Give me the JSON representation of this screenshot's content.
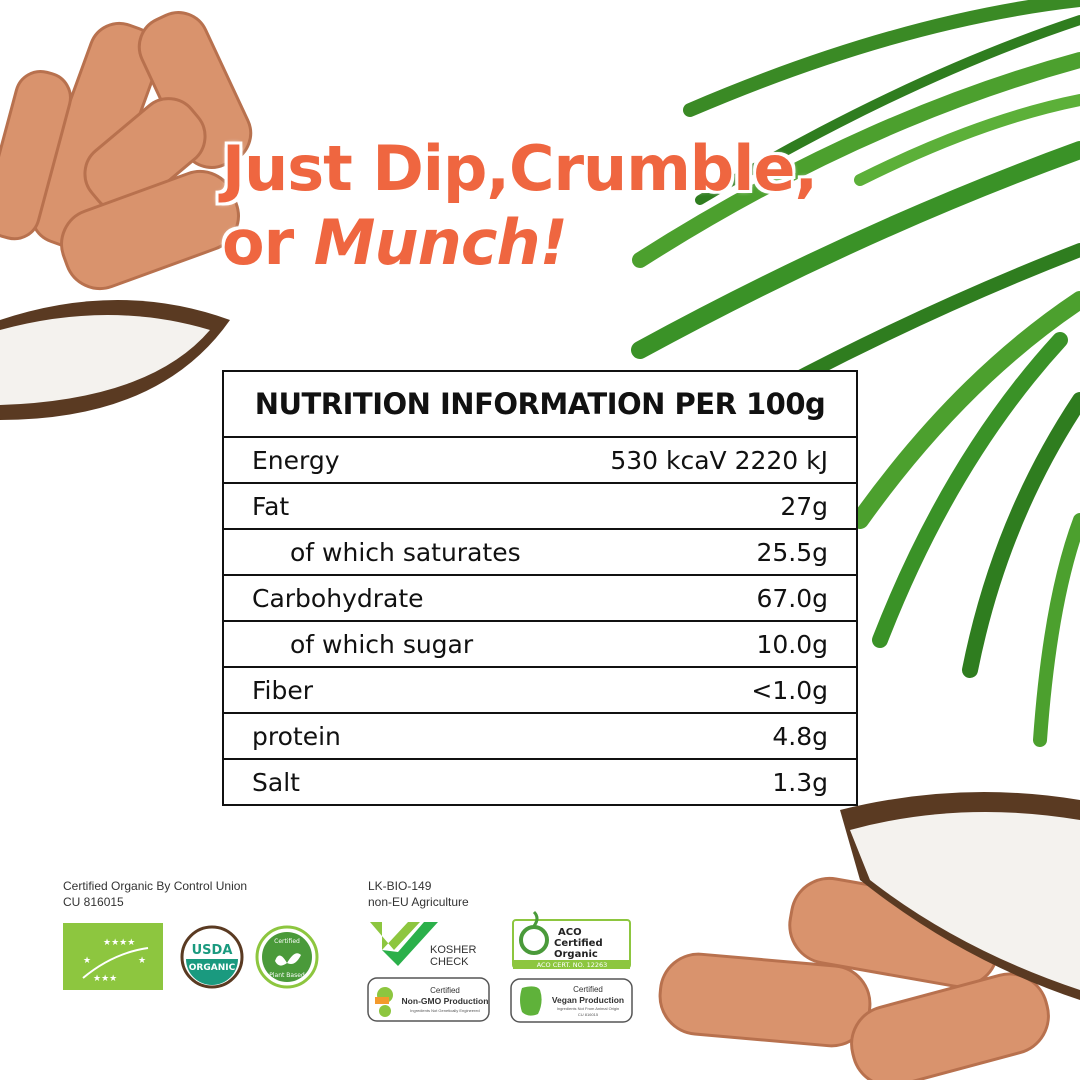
{
  "headline": {
    "line1": "Just Dip,Crumble,",
    "line2_plain": "or ",
    "line2_italic": "Munch!"
  },
  "nutrition": {
    "title": "NUTRITION INFORMATION PER 100g",
    "rows": [
      {
        "label": "Energy",
        "value": "530 kcaV 2220 kJ",
        "sub": false
      },
      {
        "label": "Fat",
        "value": "27g",
        "sub": false
      },
      {
        "label": "of which saturates",
        "value": "25.5g",
        "sub": true
      },
      {
        "label": "Carbohydrate",
        "value": "67.0g",
        "sub": false
      },
      {
        "label": "of which sugar",
        "value": "10.0g",
        "sub": true
      },
      {
        "label": "Fiber",
        "value": "<1.0g",
        "sub": false
      },
      {
        "label": "protein",
        "value": "4.8g",
        "sub": false
      },
      {
        "label": "Salt",
        "value": "1.3g",
        "sub": false
      }
    ]
  },
  "certifications": {
    "left_text": [
      "Certified Organic By Control Union",
      "CU 816015"
    ],
    "right_text": [
      "LK-BIO-149",
      "non-EU Agriculture"
    ],
    "usda": [
      "USDA",
      "ORGANIC"
    ],
    "plant_based": [
      "Certified",
      "Plant Based"
    ],
    "kosher": [
      "KOSHER",
      "CHECK"
    ],
    "aco": [
      "ACO",
      "Certified",
      "Organic",
      "ACO CERT. NO. 12263"
    ],
    "non_gmo": [
      "Certified",
      "Non-GMO Production",
      "Ingredients Not Genetically Engineered"
    ],
    "vegan": [
      "Certified",
      "Vegan Production",
      "Ingredients Not From Animal Origin",
      "CU 816015"
    ]
  },
  "colors": {
    "accent": "#ef6640",
    "leaf_green": "#3f9a2a",
    "eu_green": "#8dc63f",
    "usda_teal": "#1a9a7f"
  }
}
